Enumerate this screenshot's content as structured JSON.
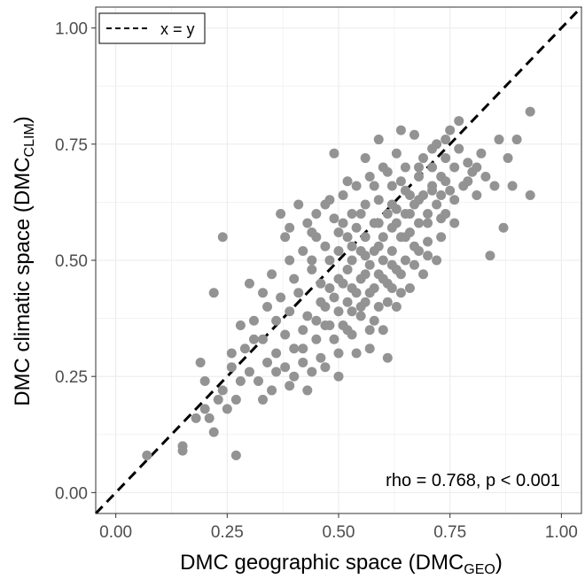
{
  "chart_data": {
    "type": "scatter",
    "title": "",
    "xlabel": {
      "main": "DMC geographic space (DMC",
      "sub": "GEO",
      "close": ")"
    },
    "ylabel": {
      "main": "DMC climatic space (DMC",
      "sub": "CLIM",
      "close": ")"
    },
    "xlim": [
      -0.045,
      1.045
    ],
    "ylim": [
      -0.045,
      1.045
    ],
    "xticks": [
      "0.00",
      "0.25",
      "0.50",
      "0.75",
      "1.00"
    ],
    "yticks": [
      "0.00",
      "0.25",
      "0.50",
      "0.75",
      "1.00"
    ],
    "grid": true,
    "legend": {
      "position": "top-left",
      "entries": [
        {
          "label": "x = y",
          "style": "dashed"
        }
      ]
    },
    "reference_line": {
      "label": "x = y",
      "from": [
        -0.045,
        -0.045
      ],
      "to": [
        1.045,
        1.045
      ]
    },
    "annotation": "rho = 0.768, p < 0.001",
    "colors": {
      "points": "#939393",
      "grid": "#ebebeb",
      "line": "#000000"
    },
    "points": [
      [
        0.07,
        0.08
      ],
      [
        0.15,
        0.09
      ],
      [
        0.15,
        0.1
      ],
      [
        0.19,
        0.28
      ],
      [
        0.2,
        0.24
      ],
      [
        0.21,
        0.16
      ],
      [
        0.22,
        0.13
      ],
      [
        0.22,
        0.43
      ],
      [
        0.24,
        0.55
      ],
      [
        0.25,
        0.18
      ],
      [
        0.26,
        0.27
      ],
      [
        0.27,
        0.08
      ],
      [
        0.27,
        0.2
      ],
      [
        0.28,
        0.36
      ],
      [
        0.29,
        0.31
      ],
      [
        0.3,
        0.45
      ],
      [
        0.3,
        0.26
      ],
      [
        0.31,
        0.37
      ],
      [
        0.32,
        0.24
      ],
      [
        0.33,
        0.33
      ],
      [
        0.33,
        0.2
      ],
      [
        0.34,
        0.28
      ],
      [
        0.35,
        0.22
      ],
      [
        0.36,
        0.37
      ],
      [
        0.36,
        0.3
      ],
      [
        0.37,
        0.6
      ],
      [
        0.37,
        0.42
      ],
      [
        0.38,
        0.34
      ],
      [
        0.38,
        0.27
      ],
      [
        0.39,
        0.5
      ],
      [
        0.39,
        0.39
      ],
      [
        0.4,
        0.46
      ],
      [
        0.4,
        0.31
      ],
      [
        0.41,
        0.43
      ],
      [
        0.42,
        0.35
      ],
      [
        0.42,
        0.28
      ],
      [
        0.43,
        0.58
      ],
      [
        0.43,
        0.38
      ],
      [
        0.44,
        0.26
      ],
      [
        0.44,
        0.48
      ],
      [
        0.45,
        0.33
      ],
      [
        0.45,
        0.55
      ],
      [
        0.46,
        0.29
      ],
      [
        0.46,
        0.41
      ],
      [
        0.47,
        0.62
      ],
      [
        0.47,
        0.36
      ],
      [
        0.48,
        0.5
      ],
      [
        0.48,
        0.44
      ],
      [
        0.49,
        0.73
      ],
      [
        0.49,
        0.33
      ],
      [
        0.49,
        0.59
      ],
      [
        0.5,
        0.39
      ],
      [
        0.5,
        0.52
      ],
      [
        0.5,
        0.3
      ],
      [
        0.51,
        0.45
      ],
      [
        0.51,
        0.64
      ],
      [
        0.51,
        0.36
      ],
      [
        0.52,
        0.55
      ],
      [
        0.52,
        0.41
      ],
      [
        0.52,
        0.48
      ],
      [
        0.53,
        0.6
      ],
      [
        0.53,
        0.34
      ],
      [
        0.53,
        0.5
      ],
      [
        0.54,
        0.43
      ],
      [
        0.54,
        0.66
      ],
      [
        0.54,
        0.57
      ],
      [
        0.55,
        0.38
      ],
      [
        0.55,
        0.52
      ],
      [
        0.55,
        0.46
      ],
      [
        0.56,
        0.62
      ],
      [
        0.56,
        0.41
      ],
      [
        0.56,
        0.55
      ],
      [
        0.57,
        0.49
      ],
      [
        0.57,
        0.68
      ],
      [
        0.57,
        0.35
      ],
      [
        0.58,
        0.58
      ],
      [
        0.58,
        0.44
      ],
      [
        0.58,
        0.52
      ],
      [
        0.59,
        0.63
      ],
      [
        0.59,
        0.47
      ],
      [
        0.59,
        0.4
      ],
      [
        0.6,
        0.55
      ],
      [
        0.6,
        0.7
      ],
      [
        0.6,
        0.5
      ],
      [
        0.61,
        0.6
      ],
      [
        0.61,
        0.45
      ],
      [
        0.61,
        0.29
      ],
      [
        0.62,
        0.66
      ],
      [
        0.62,
        0.52
      ],
      [
        0.62,
        0.57
      ],
      [
        0.63,
        0.73
      ],
      [
        0.63,
        0.48
      ],
      [
        0.63,
        0.61
      ],
      [
        0.64,
        0.55
      ],
      [
        0.64,
        0.67
      ],
      [
        0.64,
        0.43
      ],
      [
        0.65,
        0.6
      ],
      [
        0.65,
        0.5
      ],
      [
        0.65,
        0.7
      ],
      [
        0.66,
        0.64
      ],
      [
        0.66,
        0.56
      ],
      [
        0.67,
        0.77
      ],
      [
        0.67,
        0.62
      ],
      [
        0.67,
        0.53
      ],
      [
        0.68,
        0.68
      ],
      [
        0.68,
        0.58
      ],
      [
        0.69,
        0.72
      ],
      [
        0.69,
        0.64
      ],
      [
        0.7,
        0.6
      ],
      [
        0.7,
        0.51
      ],
      [
        0.71,
        0.7
      ],
      [
        0.71,
        0.66
      ],
      [
        0.72,
        0.75
      ],
      [
        0.72,
        0.62
      ],
      [
        0.73,
        0.55
      ],
      [
        0.73,
        0.68
      ],
      [
        0.74,
        0.72
      ],
      [
        0.74,
        0.6
      ],
      [
        0.75,
        0.78
      ],
      [
        0.75,
        0.65
      ],
      [
        0.76,
        0.7
      ],
      [
        0.76,
        0.58
      ],
      [
        0.77,
        0.74
      ],
      [
        0.77,
        0.8
      ],
      [
        0.78,
        0.66
      ],
      [
        0.79,
        0.71
      ],
      [
        0.8,
        0.69
      ],
      [
        0.81,
        0.64
      ],
      [
        0.82,
        0.73
      ],
      [
        0.83,
        0.68
      ],
      [
        0.84,
        0.51
      ],
      [
        0.85,
        0.66
      ],
      [
        0.86,
        0.76
      ],
      [
        0.87,
        0.57
      ],
      [
        0.88,
        0.72
      ],
      [
        0.89,
        0.66
      ],
      [
        0.9,
        0.76
      ],
      [
        0.93,
        0.82
      ],
      [
        0.93,
        0.64
      ],
      [
        0.45,
        0.6
      ],
      [
        0.42,
        0.52
      ],
      [
        0.38,
        0.55
      ],
      [
        0.34,
        0.4
      ],
      [
        0.31,
        0.33
      ],
      [
        0.28,
        0.24
      ],
      [
        0.26,
        0.3
      ],
      [
        0.24,
        0.22
      ],
      [
        0.2,
        0.18
      ],
      [
        0.18,
        0.16
      ],
      [
        0.23,
        0.2
      ],
      [
        0.4,
        0.25
      ],
      [
        0.43,
        0.22
      ],
      [
        0.47,
        0.27
      ],
      [
        0.5,
        0.25
      ],
      [
        0.54,
        0.3
      ],
      [
        0.57,
        0.31
      ],
      [
        0.6,
        0.35
      ],
      [
        0.63,
        0.4
      ],
      [
        0.66,
        0.44
      ],
      [
        0.69,
        0.47
      ],
      [
        0.72,
        0.5
      ],
      [
        0.56,
        0.72
      ],
      [
        0.59,
        0.76
      ],
      [
        0.64,
        0.78
      ],
      [
        0.52,
        0.67
      ],
      [
        0.48,
        0.63
      ],
      [
        0.44,
        0.56
      ],
      [
        0.41,
        0.62
      ],
      [
        0.39,
        0.57
      ],
      [
        0.35,
        0.47
      ],
      [
        0.33,
        0.43
      ],
      [
        0.46,
        0.45
      ],
      [
        0.49,
        0.42
      ],
      [
        0.53,
        0.39
      ],
      [
        0.57,
        0.43
      ],
      [
        0.6,
        0.46
      ],
      [
        0.62,
        0.44
      ],
      [
        0.65,
        0.55
      ],
      [
        0.68,
        0.52
      ],
      [
        0.7,
        0.58
      ],
      [
        0.73,
        0.64
      ],
      [
        0.76,
        0.63
      ],
      [
        0.79,
        0.67
      ],
      [
        0.81,
        0.7
      ],
      [
        0.51,
        0.58
      ],
      [
        0.55,
        0.6
      ],
      [
        0.58,
        0.66
      ],
      [
        0.61,
        0.69
      ],
      [
        0.63,
        0.58
      ],
      [
        0.66,
        0.6
      ],
      [
        0.68,
        0.63
      ],
      [
        0.71,
        0.65
      ],
      [
        0.74,
        0.67
      ],
      [
        0.47,
        0.4
      ],
      [
        0.5,
        0.46
      ],
      [
        0.53,
        0.44
      ],
      [
        0.56,
        0.47
      ],
      [
        0.59,
        0.53
      ],
      [
        0.62,
        0.49
      ],
      [
        0.36,
        0.26
      ],
      [
        0.39,
        0.23
      ],
      [
        0.42,
        0.31
      ],
      [
        0.45,
        0.37
      ],
      [
        0.48,
        0.36
      ],
      [
        0.52,
        0.35
      ],
      [
        0.55,
        0.4
      ],
      [
        0.58,
        0.37
      ],
      [
        0.61,
        0.41
      ],
      [
        0.64,
        0.47
      ],
      [
        0.67,
        0.49
      ],
      [
        0.7,
        0.54
      ],
      [
        0.73,
        0.59
      ],
      [
        0.44,
        0.5
      ],
      [
        0.47,
        0.53
      ],
      [
        0.5,
        0.56
      ],
      [
        0.53,
        0.53
      ],
      [
        0.56,
        0.51
      ],
      [
        0.59,
        0.58
      ],
      [
        0.62,
        0.62
      ],
      [
        0.65,
        0.65
      ],
      [
        0.68,
        0.7
      ],
      [
        0.71,
        0.74
      ],
      [
        0.74,
        0.76
      ]
    ]
  }
}
